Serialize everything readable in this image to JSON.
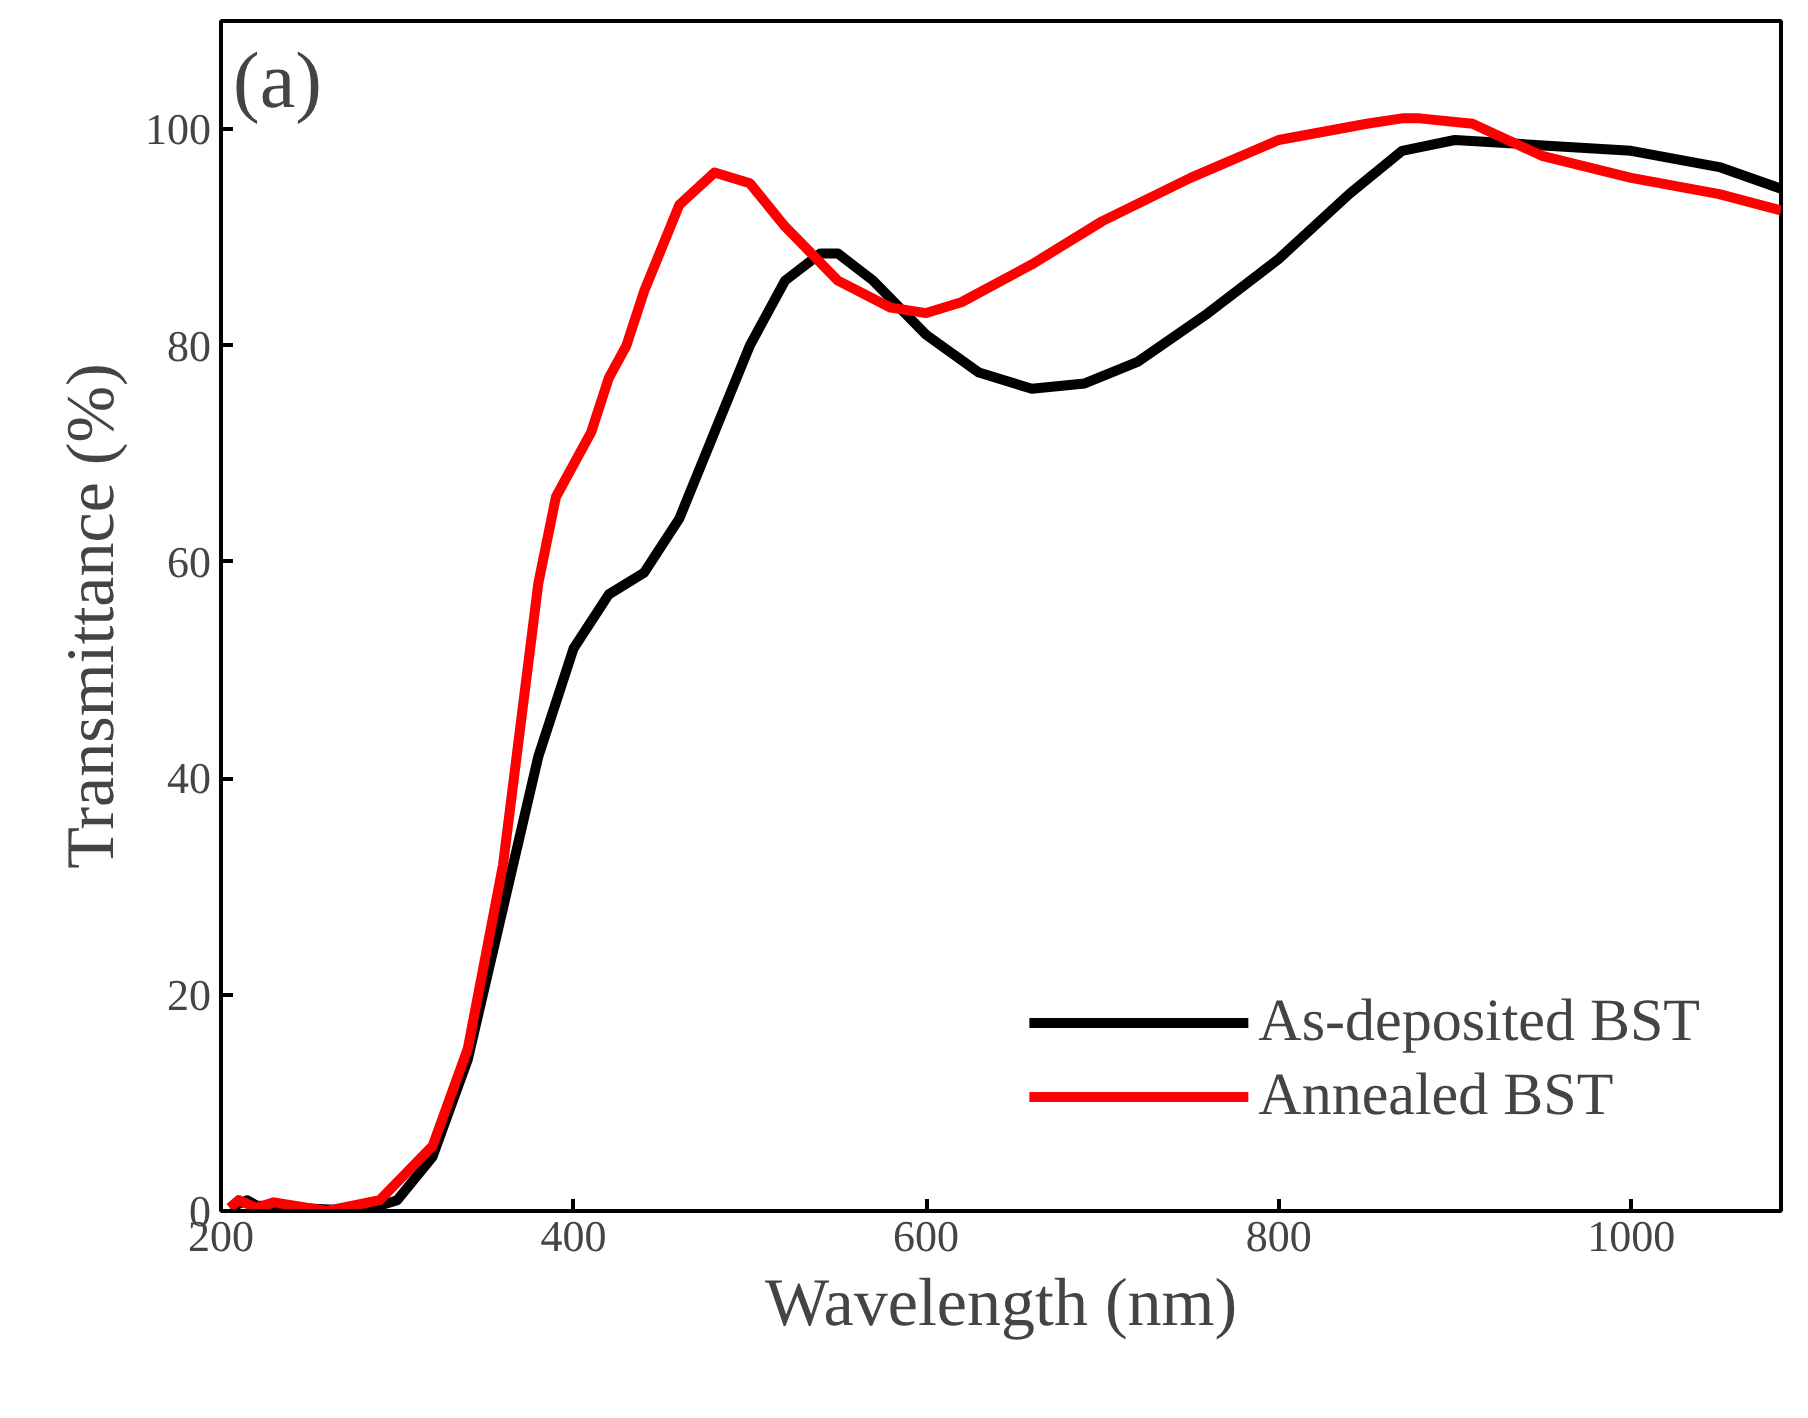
{
  "chart_data": {
    "type": "line",
    "xlabel": "Wavelength (nm)",
    "ylabel": "Transmittance (%)",
    "annotations": [
      "(a)"
    ],
    "xlim": [
      200,
      1085
    ],
    "ylim": [
      0,
      110
    ],
    "xticks": [
      200,
      400,
      600,
      800,
      1000
    ],
    "yticks": [
      0,
      20,
      40,
      60,
      80,
      100
    ],
    "grid": false,
    "legend": "bottom right",
    "series": [
      {
        "name": "As-deposited BST",
        "color": "#000000",
        "x": [
          205,
          215,
          220,
          240,
          280,
          300,
          320,
          340,
          360,
          380,
          400,
          420,
          440,
          460,
          480,
          500,
          520,
          540,
          550,
          570,
          600,
          630,
          660,
          690,
          720,
          760,
          800,
          840,
          870,
          900,
          950,
          1000,
          1050,
          1085
        ],
        "values": [
          0.3,
          1,
          0.5,
          0.3,
          0,
          1,
          5,
          14,
          28,
          42,
          52,
          57,
          59,
          64,
          72,
          80,
          86,
          88.5,
          88.5,
          86,
          81,
          77.5,
          76,
          76.5,
          78.5,
          83,
          88,
          94,
          98,
          99,
          98.5,
          98,
          96.5,
          94.5
        ]
      },
      {
        "name": "Annealed BST",
        "color": "#ff0000",
        "x": [
          205,
          210,
          220,
          230,
          260,
          290,
          320,
          340,
          360,
          370,
          380,
          390,
          410,
          420,
          430,
          440,
          460,
          480,
          500,
          520,
          550,
          580,
          600,
          620,
          660,
          700,
          750,
          800,
          850,
          870,
          880,
          910,
          950,
          1000,
          1050,
          1085
        ],
        "values": [
          0.3,
          1,
          0.3,
          0.8,
          0,
          1,
          6,
          15,
          32,
          45,
          58,
          66,
          72,
          77,
          80,
          85,
          93,
          96,
          95,
          91,
          86,
          83.5,
          83,
          84,
          87.5,
          91.5,
          95.5,
          99,
          100.5,
          101,
          101,
          100.5,
          97.5,
          95.5,
          94,
          92.5
        ]
      }
    ]
  }
}
